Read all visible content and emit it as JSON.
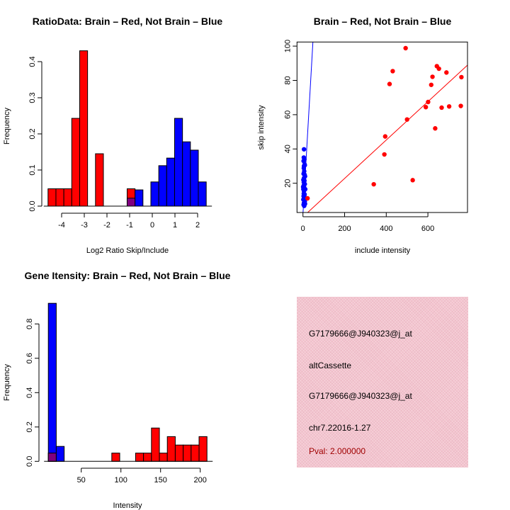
{
  "colors": {
    "red": "#ff0000",
    "blue": "#0000ff",
    "overlap": "#800080",
    "info_bg": "#f4c4cf",
    "pval": "#a00000"
  },
  "chart_data": [
    {
      "type": "bar",
      "title": "RatioData: Brain – Red, Not Brain – Blue",
      "xlabel": "Log2 Ratio Skip/Include",
      "ylabel": "Frequency",
      "breaks": [
        -4.6,
        -4.251,
        -3.902,
        -3.553,
        -3.204,
        -2.855,
        -2.506,
        -2.157,
        -1.808,
        -1.459,
        -1.11,
        -0.761,
        -0.412,
        -0.063,
        0.286,
        0.635,
        0.984,
        1.333,
        1.682,
        2.031,
        2.38
      ],
      "series": [
        {
          "name": "Brain",
          "color": "red",
          "values": [
            0.048,
            0.048,
            0.048,
            0.243,
            0.43,
            0,
            0.145,
            0,
            0,
            0,
            0.048,
            0,
            0,
            0,
            0,
            0,
            0,
            0,
            0,
            0
          ]
        },
        {
          "name": "Not Brain",
          "color": "blue",
          "values": [
            0,
            0,
            0,
            0,
            0,
            0,
            0,
            0,
            0,
            0,
            0.022,
            0.045,
            0,
            0.067,
            0.112,
            0.133,
            0.243,
            0.178,
            0.155,
            0.067
          ]
        }
      ],
      "xticks": [
        -4,
        -3,
        -2,
        -1,
        0,
        1,
        2
      ],
      "xtick_labels": [
        "-4",
        "-3",
        "-2",
        "-1",
        "0",
        "1",
        "2"
      ],
      "yticks": [
        0,
        0.1,
        0.2,
        0.3,
        0.4
      ],
      "ytick_labels": [
        "0.0",
        "0.1",
        "0.2",
        "0.3",
        "0.4"
      ],
      "ylim": [
        0,
        0.43
      ]
    },
    {
      "type": "scatter",
      "title": "Brain – Red, Not Brain – Blue",
      "xlabel": "include intensity",
      "ylabel": "skip intensity",
      "xlim": [
        -29,
        790
      ],
      "ylim": [
        3,
        102.5
      ],
      "xticks": [
        0,
        200,
        400,
        600
      ],
      "xtick_labels": [
        "0",
        "200",
        "400",
        "600"
      ],
      "yticks": [
        20,
        40,
        60,
        80,
        100
      ],
      "ytick_labels": [
        "20",
        "40",
        "60",
        "80",
        "100"
      ],
      "series": [
        {
          "name": "Brain",
          "color": "red",
          "fit": {
            "intercept": 0.4,
            "slope": 0.112
          },
          "points": [
            [
              493,
              98.8
            ],
            [
              431,
              85.4
            ],
            [
              416,
              77.9
            ],
            [
              643,
              88.3
            ],
            [
              653,
              86.8
            ],
            [
              689,
              84.6
            ],
            [
              622,
              82.1
            ],
            [
              616,
              77.4
            ],
            [
              761,
              81.9
            ],
            [
              601,
              67.4
            ],
            [
              590,
              64.4
            ],
            [
              666,
              64.1
            ],
            [
              702,
              64.8
            ],
            [
              758,
              65.1
            ],
            [
              500,
              57.2
            ],
            [
              635,
              52.0
            ],
            [
              395,
              47.3
            ],
            [
              391,
              36.8
            ],
            [
              527,
              21.8
            ],
            [
              340,
              19.4
            ],
            [
              22,
              11.2
            ]
          ]
        },
        {
          "name": "Not Brain",
          "color": "blue",
          "fit": {
            "intercept": 2,
            "slope": 2.1
          },
          "points": [
            [
              5,
              39.8
            ],
            [
              4,
              35
            ],
            [
              7,
              34
            ],
            [
              3,
              33
            ],
            [
              8,
              31
            ],
            [
              5,
              30
            ],
            [
              9,
              30.5
            ],
            [
              4,
              28.8
            ],
            [
              6,
              27
            ],
            [
              3,
              25.5
            ],
            [
              8,
              25
            ],
            [
              10,
              24
            ],
            [
              5,
              23
            ],
            [
              2,
              22
            ],
            [
              7,
              21.5
            ],
            [
              4,
              20.5
            ],
            [
              9,
              19.5
            ],
            [
              3,
              18.5
            ],
            [
              6,
              17.5
            ],
            [
              2,
              16.5
            ],
            [
              11,
              16.5
            ],
            [
              5,
              15.5
            ],
            [
              4,
              14
            ],
            [
              8,
              13.5
            ],
            [
              3,
              12.5
            ],
            [
              6,
              11.5
            ],
            [
              2,
              10.5
            ],
            [
              9,
              9.5
            ],
            [
              5,
              8.5
            ],
            [
              10,
              8
            ],
            [
              3,
              7.5
            ],
            [
              6,
              6.8
            ],
            [
              1,
              17.8
            ],
            [
              7,
              13
            ]
          ]
        }
      ]
    },
    {
      "type": "bar",
      "title": "Gene Itensity: Brain – Red, Not Brain – Blue",
      "xlabel": "Intensity",
      "ylabel": "Frequency",
      "breaks": [
        8.5,
        18.5,
        28.5,
        38.5,
        48.5,
        58.5,
        68.5,
        78.5,
        88.5,
        98.5,
        108.5,
        118.5,
        128.5,
        138.5,
        148.5,
        158.5,
        168.5,
        178.5,
        188.5,
        198.5,
        208.5
      ],
      "series": [
        {
          "name": "Brain",
          "color": "red",
          "values": [
            0.048,
            0,
            0,
            0,
            0,
            0,
            0,
            0,
            0.048,
            0,
            0,
            0.048,
            0.048,
            0.194,
            0.048,
            0.144,
            0.095,
            0.095,
            0.095,
            0.144
          ]
        },
        {
          "name": "Not Brain",
          "color": "blue",
          "values": [
            0.92,
            0.087,
            0,
            0,
            0,
            0,
            0,
            0,
            0,
            0,
            0,
            0,
            0,
            0,
            0,
            0,
            0,
            0,
            0,
            0
          ]
        }
      ],
      "xticks": [
        50,
        100,
        150,
        200
      ],
      "xtick_labels": [
        "50",
        "100",
        "150",
        "200"
      ],
      "yticks": [
        0,
        0.2,
        0.4,
        0.6,
        0.8
      ],
      "ytick_labels": [
        "0.0",
        "0.2",
        "0.4",
        "0.6",
        "0.8"
      ],
      "ylim": [
        0,
        0.92
      ]
    }
  ],
  "info_panel": {
    "lines": [
      "G7179666@J940323@j_at",
      "altCassette",
      "G7179666@J940323@j_at",
      "chr7.22016-1.27"
    ],
    "pval": "Pval: 2.000000"
  }
}
